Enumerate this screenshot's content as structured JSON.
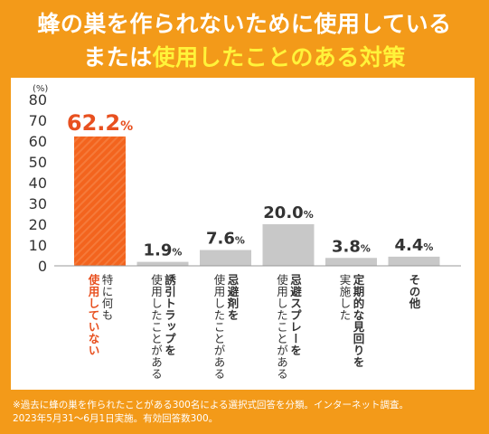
{
  "title": {
    "line1": "蜂の巣を作られないために使用している",
    "line2_pre": "または",
    "line2_highlight": "使用したことのある対策"
  },
  "notes": {
    "line1": "※過去に蜂の巣を作られたことがある300名による選択式回答を分類。インターネット調査。",
    "line2": "2023年5月31～6月1日実施。有効回答数300。"
  },
  "colors": {
    "background": "#f39a19",
    "highlight_bar": "#f3641e",
    "gray_bar": "#c8c8c8",
    "highlight_label": "#e8501f",
    "axis_text": "#333333"
  },
  "chart_data": {
    "type": "bar",
    "ylabel": "(%)",
    "ylim": [
      0,
      80
    ],
    "yticks": [
      "0",
      "10",
      "20",
      "30",
      "40",
      "50",
      "60",
      "70",
      "80"
    ],
    "grid": false,
    "categories": [
      {
        "label_lines": [
          {
            "text": "特に何も",
            "bold": false
          },
          {
            "text": "使用していない",
            "bold": true
          }
        ],
        "value": 62.2,
        "display": "62.2",
        "highlight": true
      },
      {
        "label_lines": [
          {
            "text": "誘引トラップを",
            "bold": true
          },
          {
            "text": "使用したことがある",
            "bold": false
          }
        ],
        "value": 1.9,
        "display": "1.9",
        "highlight": false
      },
      {
        "label_lines": [
          {
            "text": "忌避剤を",
            "bold": true
          },
          {
            "text": "使用したことがある",
            "bold": false
          }
        ],
        "value": 7.6,
        "display": "7.6",
        "highlight": false
      },
      {
        "label_lines": [
          {
            "text": "忌避スプレーを",
            "bold": true
          },
          {
            "text": "使用したことがある",
            "bold": false
          }
        ],
        "value": 20.0,
        "display": "20.0",
        "highlight": false
      },
      {
        "label_lines": [
          {
            "text": "定期的な見回りを",
            "bold": true
          },
          {
            "text": "実施した",
            "bold": false
          }
        ],
        "value": 3.8,
        "display": "3.8",
        "highlight": false
      },
      {
        "label_lines": [
          {
            "text": "その他",
            "bold": true
          }
        ],
        "value": 4.4,
        "display": "4.4",
        "highlight": false
      }
    ],
    "value_suffix": "%"
  }
}
